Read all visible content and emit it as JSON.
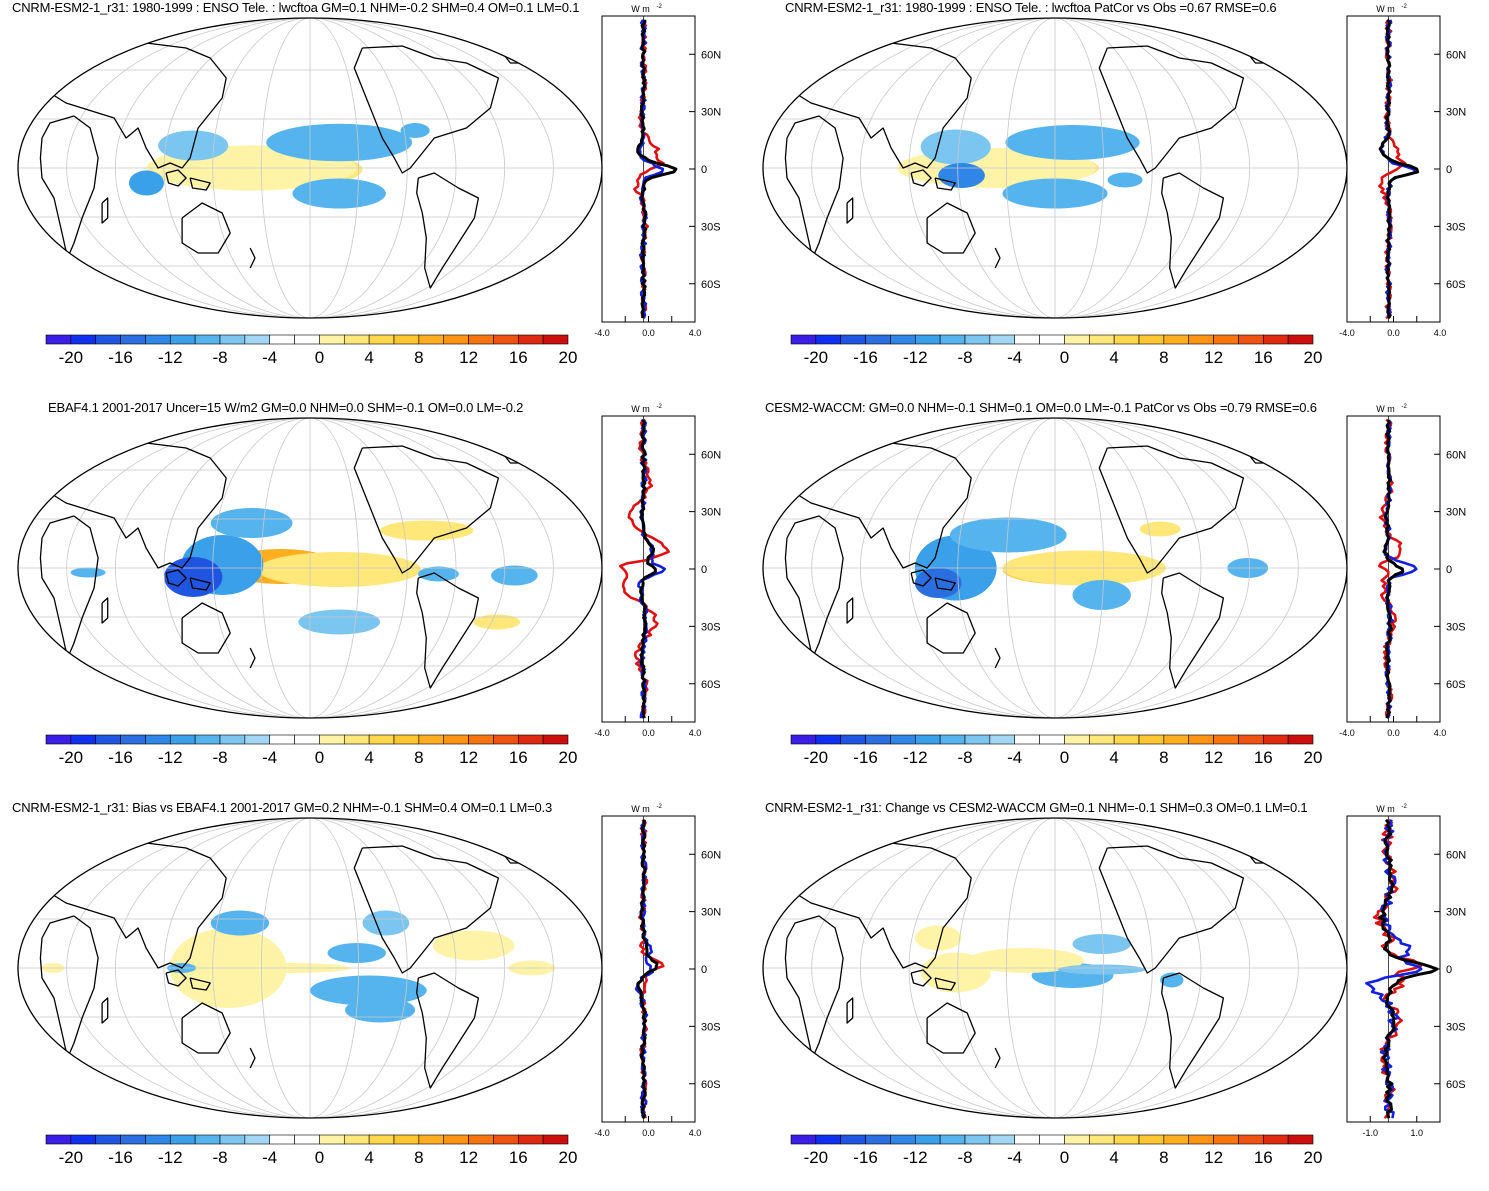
{
  "colorbar": {
    "levels": [
      "-20",
      "-16",
      "-12",
      "-8",
      "-4",
      "0",
      "4",
      "8",
      "12",
      "16",
      "20"
    ],
    "colors": [
      "#3a1ee6",
      "#1030f0",
      "#1f55e0",
      "#2a6ee0",
      "#2f86e6",
      "#3aa0ea",
      "#55b4ee",
      "#7ac6f0",
      "#a3d6f2",
      "#ffffff",
      "#ffffff",
      "#fff3a8",
      "#ffe77a",
      "#ffd84e",
      "#ffc630",
      "#ffae20",
      "#ff9315",
      "#f87510",
      "#ee5210",
      "#e02a10",
      "#cc0e0e"
    ]
  },
  "profile_labels": {
    "unit": "W m",
    "unit_exp": "-2",
    "lat_ticks": [
      "60N",
      "30N",
      "0",
      "30S",
      "60S"
    ]
  },
  "line_colors": {
    "model": "#e01010",
    "obs": "#1020e0",
    "mean": "#000000"
  },
  "panels": [
    {
      "title": "CNRM-ESM2-1_r31: 1980-1999 : ENSO Tele. : lwcftoa GM=0.1 NHM=-0.2 SHM=0.4 OM=0.1 LM=0.1",
      "x_ticks": [
        "-4.0",
        "0.0",
        "4.0"
      ]
    },
    {
      "title": "CNRM-ESM2-1_r31: 1980-1999 : ENSO Tele. : lwcftoa PatCor vs Obs =0.67 RMSE=0.6",
      "x_ticks": [
        "-4.0",
        "0.0",
        "4.0"
      ]
    },
    {
      "title": "EBAF4.1 2001-2017 Uncer=15 W/m2 GM=0.0 NHM=0.0 SHM=-0.1 OM=0.0 LM=-0.2",
      "x_ticks": [
        "-4.0",
        "0.0",
        "4.0"
      ]
    },
    {
      "title": "CESM2-WACCM: GM=0.0 NHM=-0.1 SHM=0.1 OM=0.0 LM=-0.1 PatCor vs Obs =0.79 RMSE=0.6",
      "x_ticks": [
        "-4.0",
        "0.0",
        "4.0"
      ]
    },
    {
      "title": "CNRM-ESM2-1_r31: Bias vs EBAF4.1 2001-2017 GM=0.2 NHM=-0.1 SHM=0.4 OM=0.1 LM=0.3",
      "x_ticks": [
        "-4.0",
        "0.0",
        "4.0"
      ]
    },
    {
      "title": "CNRM-ESM2-1_r31: Change vs CESM2-WACCM GM=0.1 NHM=-0.1 SHM=0.3 OM=0.1 LM=0.1",
      "x_ticks": [
        "-1.0",
        "1.0"
      ]
    }
  ],
  "chart_data": [
    {
      "type": "heatmap",
      "projection": "Robinson, centered 180",
      "title": "CNRM-ESM2-1_r31: 1980-1999 : ENSO Tele. : lwcftoa GM=0.1 NHM=-0.2 SHM=0.4 OM=0.1 LM=0.1",
      "colorbar_range": [
        -20,
        20
      ],
      "zonal_mean_xlim": [
        -4,
        4
      ],
      "zonal_mean_ylim": [
        -80,
        80
      ]
    },
    {
      "type": "heatmap",
      "projection": "Robinson, centered 180",
      "title": "CNRM-ESM2-1_r31: 1980-1999 : ENSO Tele. : lwcftoa PatCor vs Obs =0.67 RMSE=0.6",
      "colorbar_range": [
        -20,
        20
      ],
      "zonal_mean_xlim": [
        -4,
        4
      ],
      "zonal_mean_ylim": [
        -80,
        80
      ]
    },
    {
      "type": "heatmap",
      "projection": "Robinson, centered 180",
      "title": "EBAF4.1 2001-2017 Uncer=15 W/m2 GM=0.0 NHM=0.0 SHM=-0.1 OM=0.0 LM=-0.2",
      "colorbar_range": [
        -20,
        20
      ],
      "zonal_mean_xlim": [
        -4,
        4
      ],
      "zonal_mean_ylim": [
        -80,
        80
      ]
    },
    {
      "type": "heatmap",
      "projection": "Robinson, centered 180",
      "title": "CESM2-WACCM: GM=0.0 NHM=-0.1 SHM=0.1 OM=0.0 LM=-0.1 PatCor vs Obs =0.79 RMSE=0.6",
      "colorbar_range": [
        -20,
        20
      ],
      "zonal_mean_xlim": [
        -4,
        4
      ],
      "zonal_mean_ylim": [
        -80,
        80
      ]
    },
    {
      "type": "heatmap",
      "projection": "Robinson, centered 180",
      "title": "CNRM-ESM2-1_r31: Bias vs EBAF4.1 2001-2017 GM=0.2 NHM=-0.1 SHM=0.4 OM=0.1 LM=0.3",
      "colorbar_range": [
        -20,
        20
      ],
      "zonal_mean_xlim": [
        -4,
        4
      ],
      "zonal_mean_ylim": [
        -80,
        80
      ]
    },
    {
      "type": "heatmap",
      "projection": "Robinson, centered 180",
      "title": "CNRM-ESM2-1_r31: Change vs CESM2-WACCM GM=0.1 NHM=-0.1 SHM=0.3 OM=0.1 LM=0.1",
      "colorbar_range": [
        -20,
        20
      ],
      "zonal_mean_xlim": [
        -2,
        2
      ],
      "zonal_mean_ylim": [
        -80,
        80
      ]
    }
  ]
}
